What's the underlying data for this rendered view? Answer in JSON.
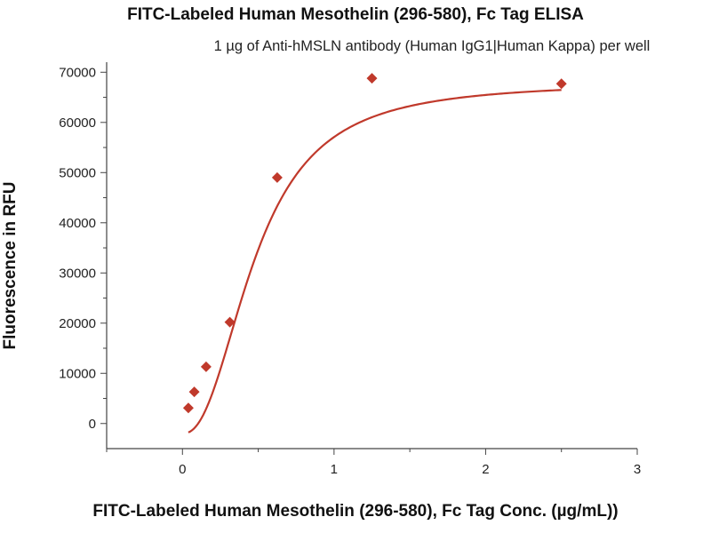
{
  "chart_data": {
    "type": "scatter",
    "title": "FITC-Labeled Human Mesothelin (296-580), Fc Tag ELISA",
    "subtitle": "1 µg of Anti-hMSLN antibody (Human IgG1|Human Kappa) per well",
    "xlabel": "FITC-Labeled Human Mesothelin (296-580), Fc Tag Conc. (µg/mL))",
    "ylabel": "Fluorescence in RFU",
    "xlim": [
      -0.5,
      3
    ],
    "ylim": [
      -5000,
      72000
    ],
    "x_ticks": [
      0,
      1,
      2,
      3
    ],
    "y_ticks": [
      0,
      10000,
      20000,
      30000,
      40000,
      50000,
      60000,
      70000
    ],
    "series": [
      {
        "name": "FITC-Labeled Human Mesothelin (296-580), Fc Tag",
        "marker": "diamond",
        "color": "#c0392b",
        "x": [
          0.039,
          0.078,
          0.156,
          0.3125,
          0.625,
          1.25,
          2.5
        ],
        "y": [
          3100,
          6300,
          11300,
          20200,
          49000,
          68800,
          67700
        ]
      }
    ],
    "fit_curve": {
      "type": "4PL",
      "color": "#c0392b",
      "bottom": -2000,
      "top": 68000,
      "ec50": 0.48,
      "hill": 2.3
    },
    "grid": false,
    "legend": "none"
  }
}
